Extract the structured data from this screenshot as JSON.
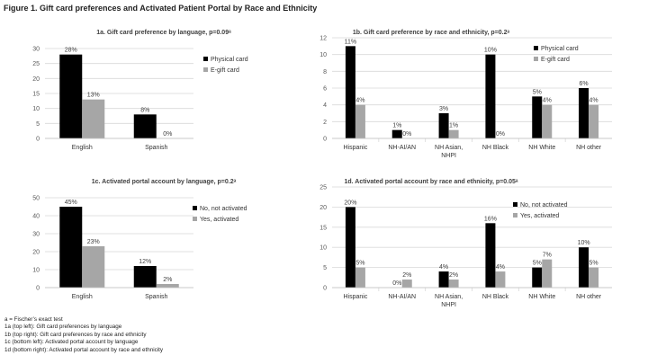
{
  "figure_title": "Figure 1. Gift card preferences and Activated Patient Portal by Race and Ethnicity",
  "colors": {
    "series_a": "#000000",
    "series_b": "#a6a6a6",
    "grid": "#d9d9d9",
    "axis_text": "#595959"
  },
  "notes": [
    "a = Fischer’s exact test",
    "1a (top left): Gift card preferences by language",
    "1b (top right): Gift card preferences by race and ethnicity",
    "1c (bottom left): Activated portal account by language",
    "1d (bottom right): Activated portal account by race and ethnicity"
  ],
  "chart_data": [
    {
      "type": "bar",
      "title": "1a. Gift card preference by language, p=0.09ᵃ",
      "categories": [
        "English",
        "Spanish"
      ],
      "ylim": [
        0,
        30
      ],
      "yticks": [
        0,
        5,
        10,
        15,
        20,
        25,
        30
      ],
      "grid": true,
      "legend": "right",
      "series": [
        {
          "name": "Physical card",
          "values": [
            28,
            8
          ],
          "labels": [
            "28%",
            "8%"
          ]
        },
        {
          "name": "E-gift card",
          "values": [
            13,
            0
          ],
          "labels": [
            "13%",
            "0%"
          ]
        }
      ]
    },
    {
      "type": "bar",
      "title": "1b. Gift card preference by race and ethnicity, p=0.2ᵃ",
      "categories": [
        "Hispanic",
        "NH-AI/AN",
        "NH Asian, NHPI",
        "NH Black",
        "NH White",
        "NH other"
      ],
      "ylim": [
        0,
        12
      ],
      "yticks": [
        0,
        2,
        4,
        6,
        8,
        10,
        12
      ],
      "grid": true,
      "legend": "right",
      "series": [
        {
          "name": "Physical card",
          "values": [
            11,
            1,
            3,
            10,
            5,
            6
          ],
          "labels": [
            "11%",
            "1%",
            "3%",
            "10%",
            "5%",
            "6%"
          ]
        },
        {
          "name": "E-gift card",
          "values": [
            4,
            0,
            1,
            0,
            4,
            4
          ],
          "labels": [
            "4%",
            "0%",
            "1%",
            "0%",
            "4%",
            "4%"
          ]
        }
      ]
    },
    {
      "type": "bar",
      "title": "1c. Activated portal account by language, p=0.2ᵃ",
      "categories": [
        "English",
        "Spanish"
      ],
      "ylim": [
        0,
        50
      ],
      "yticks": [
        0,
        10,
        20,
        30,
        40,
        50
      ],
      "grid": true,
      "legend": "right",
      "series": [
        {
          "name": "No, not activated",
          "values": [
            45,
            12
          ],
          "labels": [
            "45%",
            "12%"
          ]
        },
        {
          "name": "Yes, activated",
          "values": [
            23,
            2
          ],
          "labels": [
            "23%",
            "2%"
          ]
        }
      ]
    },
    {
      "type": "bar",
      "title": "1d. Activated portal account by race and ethnicity, p=0.05ᵃ",
      "categories": [
        "Hispanic",
        "NH-AI/AN",
        "NH Asian, NHPI",
        "NH Black",
        "NH White",
        "NH other"
      ],
      "ylim": [
        0,
        25
      ],
      "yticks": [
        0,
        5,
        10,
        15,
        20,
        25
      ],
      "grid": true,
      "legend": "right",
      "series": [
        {
          "name": "No, not activated",
          "values": [
            20,
            0,
            4,
            16,
            5,
            10
          ],
          "labels": [
            "20%",
            "0%",
            "4%",
            "16%",
            "5%",
            "10%"
          ]
        },
        {
          "name": "Yes, activated",
          "values": [
            5,
            2,
            2,
            4,
            7,
            5
          ],
          "labels": [
            "5%",
            "2%",
            "2%",
            "4%",
            "7%",
            "5%"
          ]
        }
      ]
    }
  ]
}
